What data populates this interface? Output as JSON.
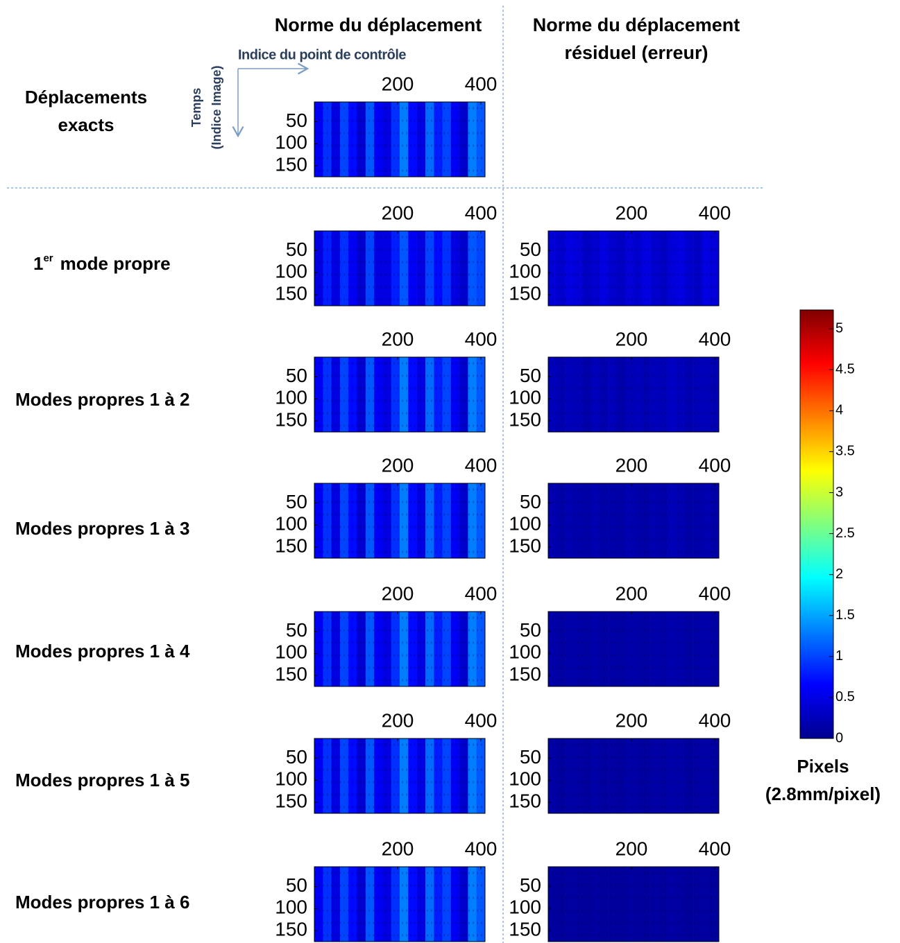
{
  "headers": {
    "left": "Norme du déplacement",
    "right_line1": "Norme du déplacement",
    "right_line2": "résiduel (erreur)"
  },
  "axis_notes": {
    "x": "Indice du point de contrôle",
    "y_line1": "Temps",
    "y_line2": "(Indice Image)"
  },
  "row_labels": {
    "exact_line1": "Déplacements",
    "exact_line2": "exacts",
    "mode1": {
      "number": "1",
      "superscript": "er",
      "text": "mode propre"
    },
    "modes": [
      "Modes propres 1 à 2",
      "Modes propres 1 à 3",
      "Modes propres 1 à 4",
      "Modes propres 1 à 5",
      "Modes propres 1 à 6"
    ]
  },
  "colorbar": {
    "label": "Pixels",
    "unit": "(2.8mm/pixel)",
    "colormap": "jet",
    "ylim": [
      0,
      5.23
    ],
    "yticks": [
      0,
      0.5,
      1,
      1.5,
      2,
      2.5,
      3,
      3.5,
      4,
      4.5,
      5
    ]
  },
  "chart_data": [
    {
      "type": "heatmap",
      "xlim": [
        0,
        410
      ],
      "ylim": [
        5,
        175
      ],
      "xticks": [
        200,
        400
      ],
      "yticks": [
        50,
        100,
        150
      ],
      "values": [
        0.6,
        0.9,
        0.5,
        1.0,
        0.7,
        0.4,
        1.1,
        0.6,
        0.5,
        0.9,
        1.3,
        0.7,
        0.5,
        1.2,
        0.8,
        1.0,
        0.6,
        0.4,
        1.3,
        1.1
      ]
    },
    {
      "type": "heatmap",
      "xlim": [
        0,
        410
      ],
      "ylim": [
        5,
        175
      ],
      "xticks": [
        200,
        400
      ],
      "yticks": [
        50,
        100,
        150
      ],
      "values": [
        0.5,
        0.8,
        0.5,
        0.9,
        0.6,
        0.4,
        1.0,
        0.5,
        0.5,
        0.8,
        1.1,
        0.6,
        0.5,
        1.0,
        0.7,
        0.9,
        0.5,
        0.4,
        1.1,
        1.0
      ]
    },
    {
      "type": "heatmap",
      "xlim": [
        0,
        410
      ],
      "ylim": [
        5,
        175
      ],
      "xticks": [
        200,
        400
      ],
      "yticks": [
        50,
        100,
        150
      ],
      "values": [
        0.45,
        0.4,
        0.5,
        0.45,
        0.35,
        0.4,
        0.5,
        0.4,
        0.35,
        0.45,
        0.4,
        0.5,
        0.4,
        0.35,
        0.45,
        0.5,
        0.4,
        0.35,
        0.5,
        0.45
      ]
    },
    {
      "type": "heatmap",
      "xlim": [
        0,
        410
      ],
      "ylim": [
        5,
        175
      ],
      "xticks": [
        200,
        400
      ],
      "yticks": [
        50,
        100,
        150
      ],
      "values": [
        0.6,
        0.9,
        0.5,
        1.0,
        0.7,
        0.4,
        1.1,
        0.6,
        0.5,
        0.9,
        1.3,
        0.7,
        0.5,
        1.2,
        0.8,
        1.0,
        0.6,
        0.4,
        1.3,
        1.1
      ]
    },
    {
      "type": "heatmap",
      "xlim": [
        0,
        410
      ],
      "ylim": [
        5,
        175
      ],
      "xticks": [
        200,
        400
      ],
      "yticks": [
        50,
        100,
        150
      ],
      "values": [
        0.3,
        0.25,
        0.3,
        0.28,
        0.22,
        0.3,
        0.25,
        0.3,
        0.22,
        0.28,
        0.3,
        0.25,
        0.3,
        0.28,
        0.35,
        0.3,
        0.25,
        0.28,
        0.3,
        0.25
      ]
    },
    {
      "type": "heatmap",
      "xlim": [
        0,
        410
      ],
      "ylim": [
        5,
        175
      ],
      "xticks": [
        200,
        400
      ],
      "yticks": [
        50,
        100,
        150
      ],
      "values": [
        0.6,
        0.9,
        0.5,
        1.0,
        0.7,
        0.4,
        1.1,
        0.6,
        0.5,
        0.9,
        1.3,
        0.7,
        0.5,
        1.2,
        0.8,
        1.0,
        0.6,
        0.4,
        1.3,
        1.1
      ]
    },
    {
      "type": "heatmap",
      "xlim": [
        0,
        410
      ],
      "ylim": [
        5,
        175
      ],
      "xticks": [
        200,
        400
      ],
      "yticks": [
        50,
        100,
        150
      ],
      "values": [
        0.25,
        0.2,
        0.25,
        0.22,
        0.2,
        0.25,
        0.2,
        0.22,
        0.2,
        0.25,
        0.22,
        0.2,
        0.25,
        0.22,
        0.28,
        0.25,
        0.2,
        0.22,
        0.25,
        0.2
      ]
    },
    {
      "type": "heatmap",
      "xlim": [
        0,
        410
      ],
      "ylim": [
        5,
        175
      ],
      "xticks": [
        200,
        400
      ],
      "yticks": [
        50,
        100,
        150
      ],
      "values": [
        0.6,
        0.9,
        0.5,
        1.0,
        0.7,
        0.4,
        1.1,
        0.6,
        0.5,
        0.9,
        1.3,
        0.7,
        0.5,
        1.2,
        0.8,
        1.0,
        0.6,
        0.4,
        1.3,
        1.1
      ]
    },
    {
      "type": "heatmap",
      "xlim": [
        0,
        410
      ],
      "ylim": [
        5,
        175
      ],
      "xticks": [
        200,
        400
      ],
      "yticks": [
        50,
        100,
        150
      ],
      "values": [
        0.22,
        0.18,
        0.22,
        0.2,
        0.18,
        0.22,
        0.18,
        0.2,
        0.18,
        0.22,
        0.2,
        0.18,
        0.22,
        0.2,
        0.24,
        0.22,
        0.18,
        0.2,
        0.22,
        0.18
      ]
    },
    {
      "type": "heatmap",
      "xlim": [
        0,
        410
      ],
      "ylim": [
        5,
        175
      ],
      "xticks": [
        200,
        400
      ],
      "yticks": [
        50,
        100,
        150
      ],
      "values": [
        0.6,
        0.9,
        0.5,
        1.0,
        0.7,
        0.4,
        1.1,
        0.6,
        0.5,
        0.9,
        1.3,
        0.7,
        0.5,
        1.2,
        0.8,
        1.0,
        0.6,
        0.4,
        1.3,
        1.1
      ]
    },
    {
      "type": "heatmap",
      "xlim": [
        0,
        410
      ],
      "ylim": [
        5,
        175
      ],
      "xticks": [
        200,
        400
      ],
      "yticks": [
        50,
        100,
        150
      ],
      "values": [
        0.2,
        0.16,
        0.2,
        0.18,
        0.16,
        0.2,
        0.16,
        0.18,
        0.16,
        0.2,
        0.18,
        0.16,
        0.2,
        0.18,
        0.22,
        0.2,
        0.16,
        0.18,
        0.2,
        0.16
      ]
    },
    {
      "type": "heatmap",
      "xlim": [
        0,
        410
      ],
      "ylim": [
        5,
        175
      ],
      "xticks": [
        200,
        400
      ],
      "yticks": [
        50,
        100,
        150
      ],
      "values": [
        0.6,
        0.9,
        0.5,
        1.0,
        0.7,
        0.4,
        1.1,
        0.6,
        0.5,
        0.9,
        1.3,
        0.7,
        0.5,
        1.2,
        0.8,
        1.0,
        0.6,
        0.4,
        1.3,
        1.1
      ]
    },
    {
      "type": "heatmap",
      "xlim": [
        0,
        410
      ],
      "ylim": [
        5,
        175
      ],
      "xticks": [
        200,
        400
      ],
      "yticks": [
        50,
        100,
        150
      ],
      "values": [
        0.17,
        0.14,
        0.17,
        0.15,
        0.14,
        0.17,
        0.14,
        0.15,
        0.14,
        0.17,
        0.15,
        0.14,
        0.17,
        0.15,
        0.19,
        0.17,
        0.14,
        0.15,
        0.17,
        0.14
      ]
    }
  ]
}
